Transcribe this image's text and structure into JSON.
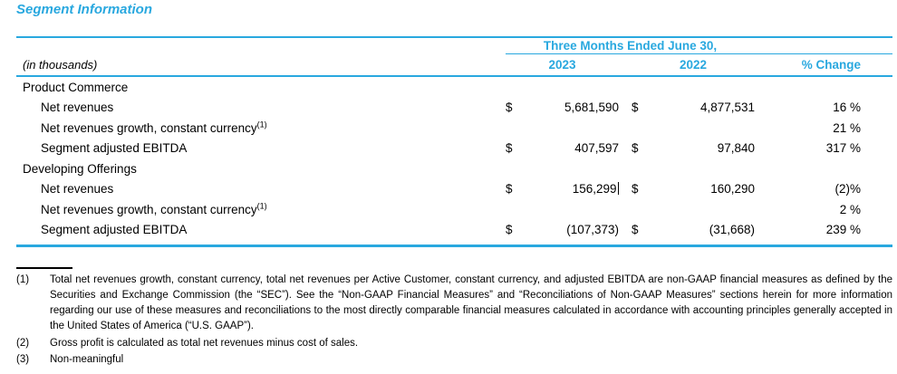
{
  "page": {
    "title": "Segment Information"
  },
  "colors": {
    "accent": "#29A8DF",
    "text": "#000000"
  },
  "table": {
    "spanner": "Three Months Ended June 30,",
    "unit_label": "(in thousands)",
    "columns": [
      "2023",
      "2022",
      "% Change"
    ],
    "rows": [
      {
        "label": "Product Commerce",
        "indent": 0,
        "sup": "",
        "d1": "",
        "v1": "",
        "d2": "",
        "v2": "",
        "pct": "",
        "caret": false
      },
      {
        "label": "Net revenues",
        "indent": 1,
        "sup": "",
        "d1": "$",
        "v1": "5,681,590",
        "d2": "$",
        "v2": "4,877,531",
        "pct": "16 %",
        "caret": false
      },
      {
        "label": "Net revenues growth, constant currency",
        "indent": 1,
        "sup": "(1)",
        "d1": "",
        "v1": "",
        "d2": "",
        "v2": "",
        "pct": "21 %",
        "caret": false
      },
      {
        "label": "Segment adjusted EBITDA",
        "indent": 1,
        "sup": "",
        "d1": "$",
        "v1": "407,597",
        "d2": "$",
        "v2": "97,840",
        "pct": "317 %",
        "caret": false
      },
      {
        "label": "Developing Offerings",
        "indent": 0,
        "sup": "",
        "d1": "",
        "v1": "",
        "d2": "",
        "v2": "",
        "pct": "",
        "caret": false
      },
      {
        "label": "Net revenues",
        "indent": 1,
        "sup": "",
        "d1": "$",
        "v1": "156,299",
        "d2": "$",
        "v2": "160,290",
        "pct": "(2)%",
        "caret": true
      },
      {
        "label": "Net revenues growth, constant currency",
        "indent": 1,
        "sup": "(1)",
        "d1": "",
        "v1": "",
        "d2": "",
        "v2": "",
        "pct": "2 %",
        "caret": false
      },
      {
        "label": "Segment adjusted EBITDA",
        "indent": 1,
        "sup": "",
        "d1": "$",
        "v1": "(107,373)",
        "d2": "$",
        "v2": "(31,668)",
        "pct": "239 %",
        "caret": false
      }
    ]
  },
  "footnotes": [
    {
      "marker": "(1)",
      "text": "Total net revenues growth, constant currency, total net revenues per Active Customer, constant currency, and adjusted EBITDA are non-GAAP financial measures as defined by the Securities and Exchange Commission (the “SEC”). See the “Non-GAAP Financial Measures” and “Reconciliations of Non-GAAP Measures” sections herein for more information regarding our use of these measures and reconciliations to the most directly comparable financial measures calculated in accordance with accounting principles generally accepted in the United States of America (“U.S. GAAP”)."
    },
    {
      "marker": "(2)",
      "text": "Gross profit is calculated as total net revenues minus cost of sales."
    },
    {
      "marker": "(3)",
      "text": "Non-meaningful"
    }
  ]
}
